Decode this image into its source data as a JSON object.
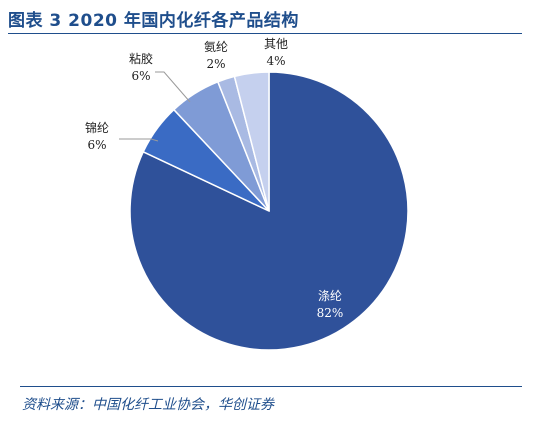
{
  "figure": {
    "title": "图表 3  2020 年国内化纤各产品结构",
    "source": "资料来源：中国化纤工业协会，华创证券"
  },
  "chart_data": {
    "type": "pie",
    "start_angle_deg": 0,
    "direction": "clockwise",
    "slices": [
      {
        "label": "涤纶",
        "value": 82,
        "value_label": "82%",
        "color": "#2f519a",
        "label_style": "inside",
        "text_color": "#ffffff"
      },
      {
        "label": "锦纶",
        "value": 6,
        "value_label": "6%",
        "color": "#3a6bc4",
        "label_style": "outside-leader",
        "text_color": "#222222"
      },
      {
        "label": "粘胶",
        "value": 6,
        "value_label": "6%",
        "color": "#7f9bd6",
        "label_style": "outside-leader",
        "text_color": "#222222"
      },
      {
        "label": "氨纶",
        "value": 2,
        "value_label": "2%",
        "color": "#a9bae3",
        "label_style": "outside-leader",
        "text_color": "#222222"
      },
      {
        "label": "其他",
        "value": 4,
        "value_label": "4%",
        "color": "#c5d0ee",
        "label_style": "outside-leader",
        "text_color": "#222222"
      }
    ]
  }
}
